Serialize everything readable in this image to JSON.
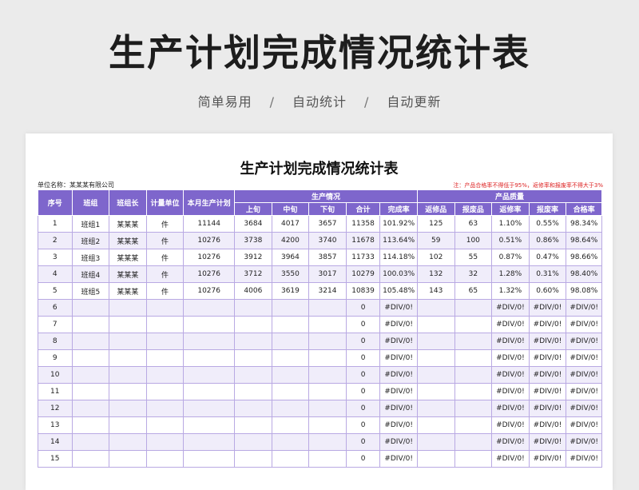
{
  "banner": {
    "title": "生产计划完成情况统计表",
    "tags": [
      "简单易用",
      "自动统计",
      "自动更新"
    ],
    "separator": "/"
  },
  "sheet": {
    "title": "生产计划完成情况统计表",
    "unit_label": "单位名称：",
    "unit_value": "某某某有限公司",
    "note": "注：产品合格率不得低于95%，返修率和报废率不得大于3%"
  },
  "table": {
    "headers": {
      "seq": "序号",
      "team": "班组",
      "leader": "班组长",
      "unit": "计量单位",
      "plan": "本月生产计划",
      "production_group": "生产情况",
      "quality_group": "产品质量",
      "first": "上旬",
      "mid": "中旬",
      "last": "下旬",
      "total": "合计",
      "completion": "完成率",
      "repair_qty": "返修品",
      "scrap_qty": "报废品",
      "repair_rate": "返修率",
      "scrap_rate": "报废率",
      "pass_rate": "合格率"
    },
    "rows": [
      [
        "1",
        "班组1",
        "某某某",
        "件",
        "11144",
        "3684",
        "4017",
        "3657",
        "11358",
        "101.92%",
        "125",
        "63",
        "1.10%",
        "0.55%",
        "98.34%"
      ],
      [
        "2",
        "班组2",
        "某某某",
        "件",
        "10276",
        "3738",
        "4200",
        "3740",
        "11678",
        "113.64%",
        "59",
        "100",
        "0.51%",
        "0.86%",
        "98.64%"
      ],
      [
        "3",
        "班组3",
        "某某某",
        "件",
        "10276",
        "3912",
        "3964",
        "3857",
        "11733",
        "114.18%",
        "102",
        "55",
        "0.87%",
        "0.47%",
        "98.66%"
      ],
      [
        "4",
        "班组4",
        "某某某",
        "件",
        "10276",
        "3712",
        "3550",
        "3017",
        "10279",
        "100.03%",
        "132",
        "32",
        "1.28%",
        "0.31%",
        "98.40%"
      ],
      [
        "5",
        "班组5",
        "某某某",
        "件",
        "10276",
        "4006",
        "3619",
        "3214",
        "10839",
        "105.48%",
        "143",
        "65",
        "1.32%",
        "0.60%",
        "98.08%"
      ],
      [
        "6",
        "",
        "",
        "",
        "",
        "",
        "",
        "",
        "0",
        "#DIV/0!",
        "",
        "",
        "#DIV/0!",
        "#DIV/0!",
        "#DIV/0!"
      ],
      [
        "7",
        "",
        "",
        "",
        "",
        "",
        "",
        "",
        "0",
        "#DIV/0!",
        "",
        "",
        "#DIV/0!",
        "#DIV/0!",
        "#DIV/0!"
      ],
      [
        "8",
        "",
        "",
        "",
        "",
        "",
        "",
        "",
        "0",
        "#DIV/0!",
        "",
        "",
        "#DIV/0!",
        "#DIV/0!",
        "#DIV/0!"
      ],
      [
        "9",
        "",
        "",
        "",
        "",
        "",
        "",
        "",
        "0",
        "#DIV/0!",
        "",
        "",
        "#DIV/0!",
        "#DIV/0!",
        "#DIV/0!"
      ],
      [
        "10",
        "",
        "",
        "",
        "",
        "",
        "",
        "",
        "0",
        "#DIV/0!",
        "",
        "",
        "#DIV/0!",
        "#DIV/0!",
        "#DIV/0!"
      ],
      [
        "11",
        "",
        "",
        "",
        "",
        "",
        "",
        "",
        "0",
        "#DIV/0!",
        "",
        "",
        "#DIV/0!",
        "#DIV/0!",
        "#DIV/0!"
      ],
      [
        "12",
        "",
        "",
        "",
        "",
        "",
        "",
        "",
        "0",
        "#DIV/0!",
        "",
        "",
        "#DIV/0!",
        "#DIV/0!",
        "#DIV/0!"
      ],
      [
        "13",
        "",
        "",
        "",
        "",
        "",
        "",
        "",
        "0",
        "#DIV/0!",
        "",
        "",
        "#DIV/0!",
        "#DIV/0!",
        "#DIV/0!"
      ],
      [
        "14",
        "",
        "",
        "",
        "",
        "",
        "",
        "",
        "0",
        "#DIV/0!",
        "",
        "",
        "#DIV/0!",
        "#DIV/0!",
        "#DIV/0!"
      ],
      [
        "15",
        "",
        "",
        "",
        "",
        "",
        "",
        "",
        "0",
        "#DIV/0!",
        "",
        "",
        "#DIV/0!",
        "#DIV/0!",
        "#DIV/0!"
      ]
    ]
  },
  "colors": {
    "header_bg": "#7e66cc",
    "alt_row_bg": "#f0edfa",
    "note_text": "#dd2222"
  }
}
